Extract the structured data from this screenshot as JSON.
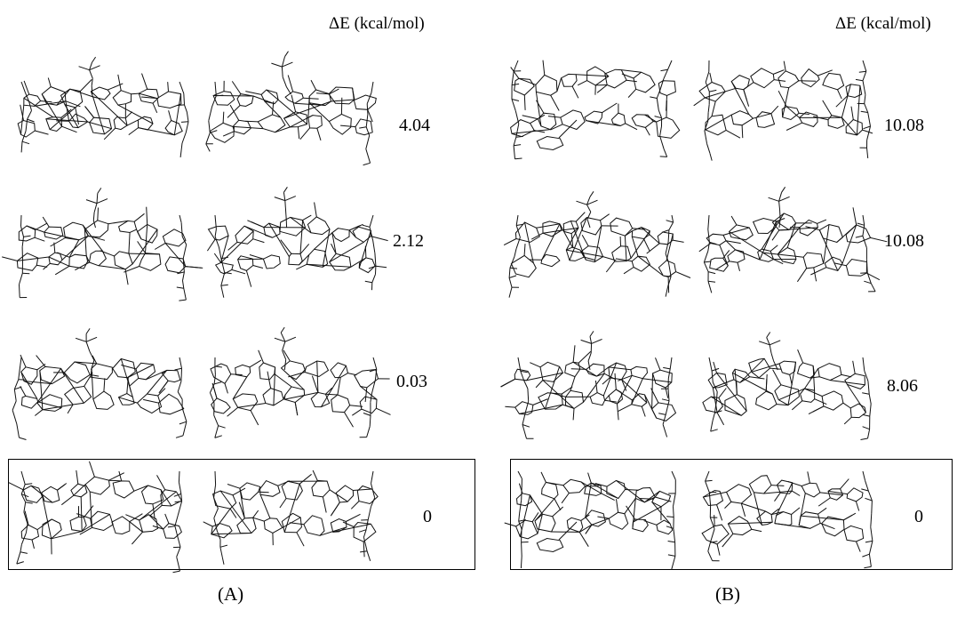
{
  "panels": [
    {
      "header": "ΔE (kcal/mol)",
      "caption": "(A)",
      "energies": [
        "4.04",
        "2.12",
        "0.03",
        "0"
      ]
    },
    {
      "header": "ΔE (kcal/mol)",
      "caption": "(B)",
      "energies": [
        "10.08",
        "10.08",
        "8.06",
        "0"
      ]
    }
  ],
  "highlighted_row": 3
}
